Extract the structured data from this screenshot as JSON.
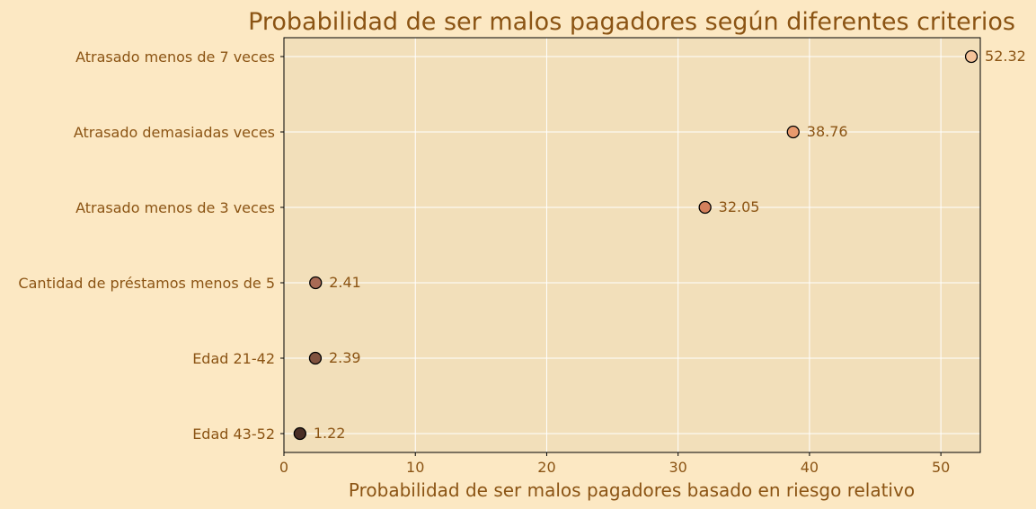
{
  "chart_data": {
    "type": "scatter",
    "title": "Probabilidad de ser malos pagadores según diferentes criterios",
    "xlabel": "Probabilidad de ser malos pagadores basado en riesgo relativo",
    "ylabel": "",
    "xlim": [
      0,
      53
    ],
    "xticks": [
      0,
      10,
      20,
      30,
      40,
      50
    ],
    "grid": true,
    "categories": [
      "Atrasado menos de 7 veces",
      "Atrasado demasiadas veces",
      "Atrasado menos de 3 veces",
      "Cantidad de préstamos menos de 5",
      "Edad 21-42",
      "Edad 43-52"
    ],
    "values": [
      52.32,
      38.76,
      32.05,
      2.41,
      2.39,
      1.22
    ],
    "labels": [
      "52.32",
      "38.76",
      "32.05",
      "2.41",
      "2.39",
      "1.22"
    ],
    "colors": [
      "#f5c39a",
      "#e89a6e",
      "#d4805c",
      "#a86a55",
      "#80523f",
      "#4a2e26"
    ]
  },
  "style": {
    "background": "#fce8c3",
    "plot_background": "#f2dfba",
    "text_color": "#8b5414",
    "grid_color": "#ffffff"
  }
}
